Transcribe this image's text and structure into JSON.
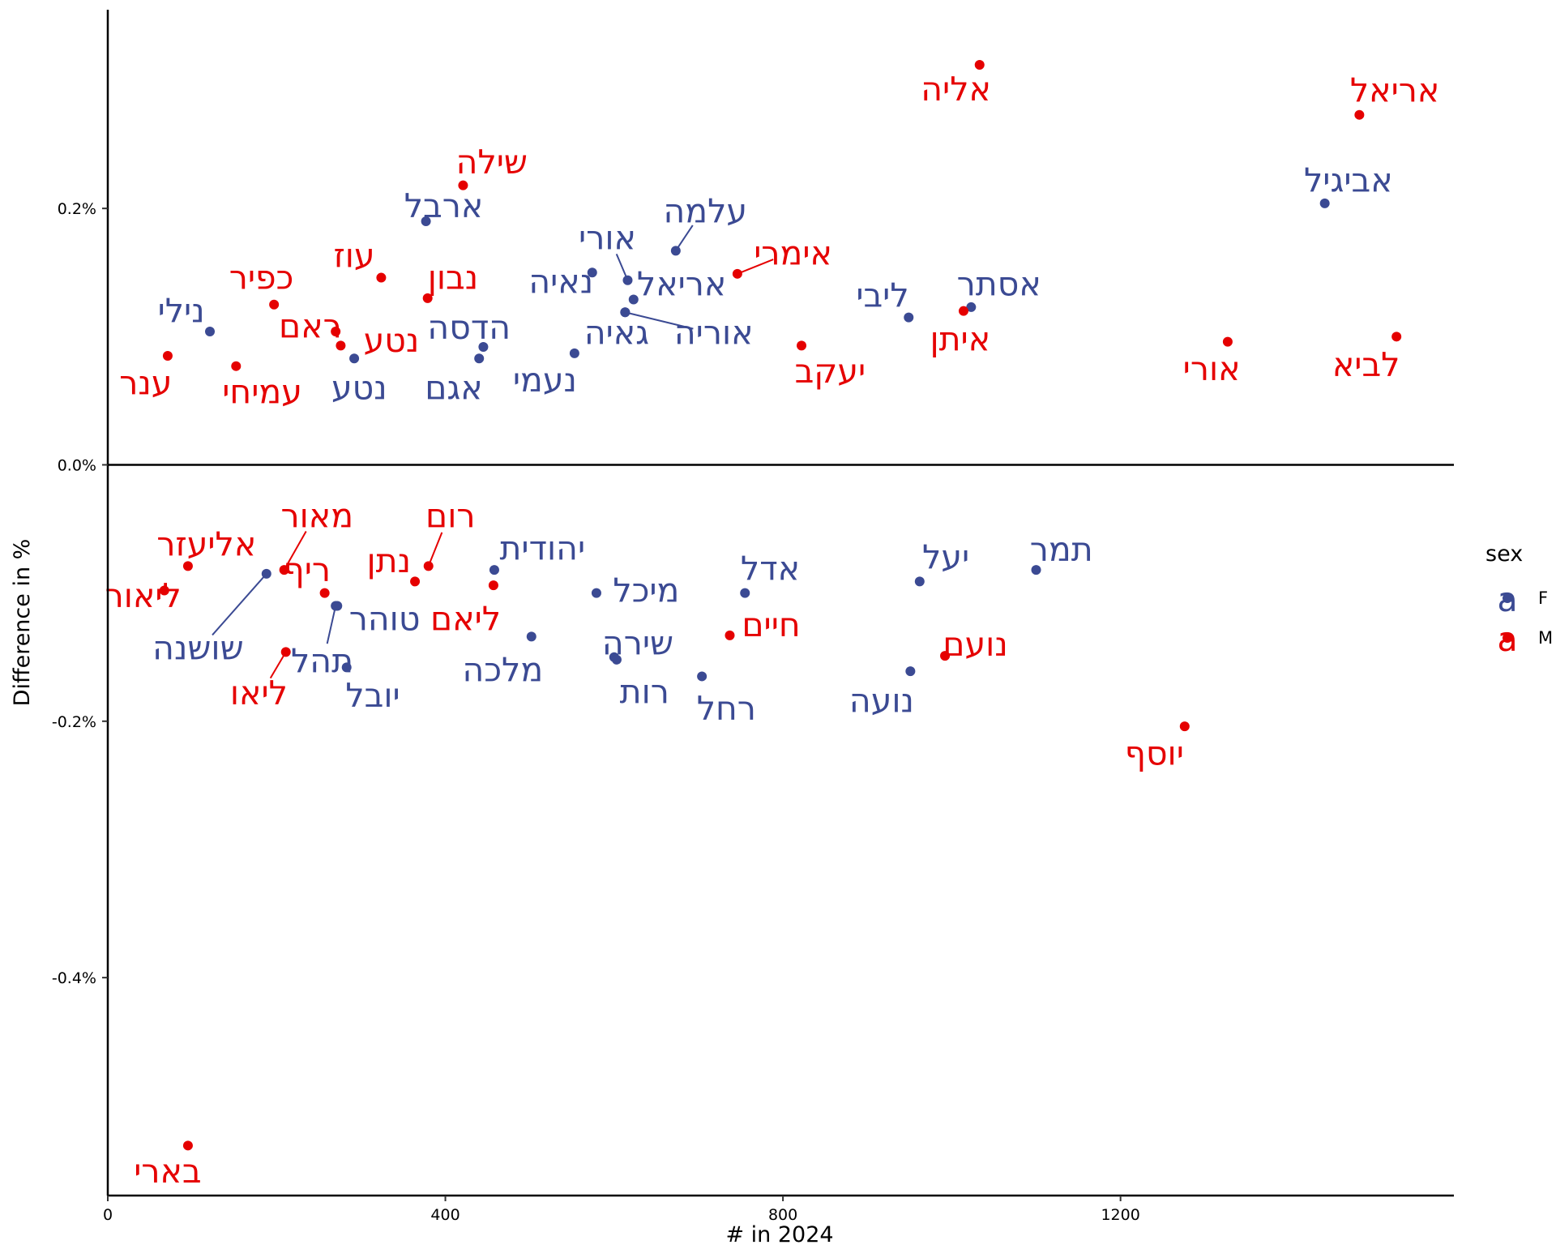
{
  "chart_data": {
    "type": "scatter",
    "xlabel": "# in 2024",
    "ylabel": "Difference in %",
    "xlim": [
      0,
      1595
    ],
    "ylim": [
      -0.57,
      0.355
    ],
    "x_ticks": [
      0,
      400,
      800,
      1200
    ],
    "y_ticks": [
      -0.4,
      -0.2,
      0.0,
      0.2
    ],
    "y_tick_labels": [
      "-0.4%",
      "-0.2%",
      "0.0%",
      "0.2%"
    ],
    "legend": {
      "title": "sex",
      "position": "right",
      "key_glyph": "a",
      "entries": [
        {
          "label": "F",
          "color": "#3b4a93"
        },
        {
          "label": "M",
          "color": "#e50000"
        }
      ]
    },
    "colors": {
      "F": "#3b4a93",
      "M": "#e50000"
    },
    "points": [
      {
        "name": "אליה",
        "sex": "M",
        "x": 1033,
        "y": 0.312,
        "lx": 1005,
        "ly": 0.293
      },
      {
        "name": "אריאל",
        "sex": "M",
        "x": 1483,
        "y": 0.273,
        "lx": 1525,
        "ly": 0.292
      },
      {
        "name": "אביגיל",
        "sex": "F",
        "x": 1442,
        "y": 0.204,
        "lx": 1470,
        "ly": 0.222
      },
      {
        "name": "שילה",
        "sex": "M",
        "x": 421,
        "y": 0.218,
        "lx": 455,
        "ly": 0.236
      },
      {
        "name": "ארבל",
        "sex": "F",
        "x": 377,
        "y": 0.19,
        "lx": 398,
        "ly": 0.202
      },
      {
        "name": "עלמה",
        "sex": "F",
        "x": 673,
        "y": 0.167,
        "lx": 708,
        "ly": 0.198
      },
      {
        "name": "אורי",
        "sex": "F",
        "x": 616,
        "y": 0.144,
        "lx": 592,
        "ly": 0.177
      },
      {
        "name": "אימרי",
        "sex": "M",
        "x": 746,
        "y": 0.149,
        "lx": 812,
        "ly": 0.165
      },
      {
        "name": "עוז",
        "sex": "M",
        "x": 324,
        "y": 0.146,
        "lx": 292,
        "ly": 0.163
      },
      {
        "name": "נבון",
        "sex": "M",
        "x": 379,
        "y": 0.13,
        "lx": 409,
        "ly": 0.146
      },
      {
        "name": "כפיר",
        "sex": "M",
        "x": 197,
        "y": 0.125,
        "lx": 182,
        "ly": 0.146
      },
      {
        "name": "נאיה",
        "sex": "F",
        "x": 574,
        "y": 0.15,
        "lx": 537,
        "ly": 0.143
      },
      {
        "name": "אריאל",
        "sex": "F",
        "x": 623,
        "y": 0.129,
        "lx": 680,
        "ly": 0.141
      },
      {
        "name": "ליבי",
        "sex": "F",
        "x": 949,
        "y": 0.115,
        "lx": 918,
        "ly": 0.132
      },
      {
        "name": "אסתר",
        "sex": "F",
        "x": 1023,
        "y": 0.123,
        "lx": 1056,
        "ly": 0.141
      },
      {
        "name": "נילי",
        "sex": "F",
        "x": 121,
        "y": 0.104,
        "lx": 87,
        "ly": 0.12
      },
      {
        "name": "ראם",
        "sex": "M",
        "x": 270,
        "y": 0.104,
        "lx": 240,
        "ly": 0.108
      },
      {
        "name": "נטע",
        "sex": "M",
        "x": 276,
        "y": 0.093,
        "lx": 336,
        "ly": 0.097
      },
      {
        "name": "הדסה",
        "sex": "F",
        "x": 445,
        "y": 0.092,
        "lx": 428,
        "ly": 0.107
      },
      {
        "name": "גאיה",
        "sex": "F",
        "x": 613,
        "y": 0.119,
        "lx": 603,
        "ly": 0.103
      },
      {
        "name": "אוריה",
        "sex": "F",
        "x": 613,
        "y": 0.119,
        "lx": 718,
        "ly": 0.103
      },
      {
        "name": "איתן",
        "sex": "M",
        "x": 1014,
        "y": 0.12,
        "lx": 1010,
        "ly": 0.098
      },
      {
        "name": "יעקב",
        "sex": "M",
        "x": 822,
        "y": 0.093,
        "lx": 856,
        "ly": 0.073
      },
      {
        "name": "אורי",
        "sex": "M",
        "x": 1327,
        "y": 0.096,
        "lx": 1308,
        "ly": 0.075
      },
      {
        "name": "לביא",
        "sex": "M",
        "x": 1527,
        "y": 0.1,
        "lx": 1491,
        "ly": 0.078
      },
      {
        "name": "ענר",
        "sex": "M",
        "x": 71,
        "y": 0.085,
        "lx": 45,
        "ly": 0.064
      },
      {
        "name": "עמיחי",
        "sex": "M",
        "x": 152,
        "y": 0.077,
        "lx": 183,
        "ly": 0.057
      },
      {
        "name": "נטע",
        "sex": "F",
        "x": 292,
        "y": 0.083,
        "lx": 298,
        "ly": 0.06
      },
      {
        "name": "אגם",
        "sex": "F",
        "x": 440,
        "y": 0.083,
        "lx": 410,
        "ly": 0.06
      },
      {
        "name": "נעמי",
        "sex": "F",
        "x": 553,
        "y": 0.087,
        "lx": 518,
        "ly": 0.066
      },
      {
        "name": "רום",
        "sex": "M",
        "x": 380,
        "y": -0.079,
        "lx": 406,
        "ly": -0.04
      },
      {
        "name": "מאור",
        "sex": "M",
        "x": 209,
        "y": -0.082,
        "lx": 248,
        "ly": -0.04
      },
      {
        "name": "אליעזר",
        "sex": "M",
        "x": 95,
        "y": -0.079,
        "lx": 117,
        "ly": -0.062
      },
      {
        "name": "יהודית",
        "sex": "F",
        "x": 458,
        "y": -0.082,
        "lx": 515,
        "ly": -0.065
      },
      {
        "name": "נתן",
        "sex": "M",
        "x": 364,
        "y": -0.091,
        "lx": 333,
        "ly": -0.075
      },
      {
        "name": "ריף",
        "sex": "M",
        "x": 257,
        "y": -0.1,
        "lx": 236,
        "ly": -0.082
      },
      {
        "name": "אדל",
        "sex": "F",
        "x": 755,
        "y": -0.1,
        "lx": 785,
        "ly": -0.081
      },
      {
        "name": "יעל",
        "sex": "F",
        "x": 962,
        "y": -0.091,
        "lx": 993,
        "ly": -0.072
      },
      {
        "name": "תמר",
        "sex": "F",
        "x": 1100,
        "y": -0.082,
        "lx": 1130,
        "ly": -0.066
      },
      {
        "name": "ליאור",
        "sex": "M",
        "x": 67,
        "y": -0.098,
        "lx": 42,
        "ly": -0.102
      },
      {
        "name": "מיכל",
        "sex": "F",
        "x": 579,
        "y": -0.1,
        "lx": 638,
        "ly": -0.098
      },
      {
        "name": "ליאם",
        "sex": "M",
        "x": 457,
        "y": -0.094,
        "lx": 424,
        "ly": -0.12
      },
      {
        "name": "טוהר",
        "sex": "F",
        "x": 272,
        "y": -0.11,
        "lx": 328,
        "ly": -0.12
      },
      {
        "name": "חיים",
        "sex": "M",
        "x": 737,
        "y": -0.133,
        "lx": 786,
        "ly": -0.125
      },
      {
        "name": "שושנה",
        "sex": "F",
        "x": 188,
        "y": -0.085,
        "lx": 107,
        "ly": -0.143
      },
      {
        "name": "שירה",
        "sex": "F",
        "x": 600,
        "y": -0.15,
        "lx": 628,
        "ly": -0.139
      },
      {
        "name": "תהל",
        "sex": "F",
        "x": 270,
        "y": -0.11,
        "lx": 254,
        "ly": -0.153
      },
      {
        "name": "נועם",
        "sex": "M",
        "x": 992,
        "y": -0.149,
        "lx": 1028,
        "ly": -0.14
      },
      {
        "name": "מלכה",
        "sex": "F",
        "x": 502,
        "y": -0.134,
        "lx": 468,
        "ly": -0.16
      },
      {
        "name": "יובל",
        "sex": "F",
        "x": 283,
        "y": -0.158,
        "lx": 314,
        "ly": -0.18
      },
      {
        "name": "ליאו",
        "sex": "M",
        "x": 211,
        "y": -0.146,
        "lx": 179,
        "ly": -0.178
      },
      {
        "name": "רות",
        "sex": "F",
        "x": 603,
        "y": -0.152,
        "lx": 636,
        "ly": -0.177
      },
      {
        "name": "רחל",
        "sex": "F",
        "x": 704,
        "y": -0.165,
        "lx": 733,
        "ly": -0.19
      },
      {
        "name": "נועה",
        "sex": "F",
        "x": 951,
        "y": -0.161,
        "lx": 917,
        "ly": -0.184
      },
      {
        "name": "יוסף",
        "sex": "M",
        "x": 1276,
        "y": -0.204,
        "lx": 1240,
        "ly": -0.225
      },
      {
        "name": "בארי",
        "sex": "M",
        "x": 95,
        "y": -0.531,
        "lx": 71,
        "ly": -0.551
      }
    ],
    "connectors": [
      {
        "from_point": 6,
        "to_label": 6
      },
      {
        "from_point": 5,
        "to_label": 5
      },
      {
        "from_point": 7,
        "to_label": 7
      },
      {
        "from_point": 20,
        "to_label": 20
      },
      {
        "from_point": 30,
        "to_label": 30
      },
      {
        "from_point": 31,
        "to_label": 31
      },
      {
        "from_point": 44,
        "to_label": 44
      },
      {
        "from_point": 46,
        "to_label": 46
      },
      {
        "from_point": 50,
        "to_label": 50
      }
    ]
  }
}
